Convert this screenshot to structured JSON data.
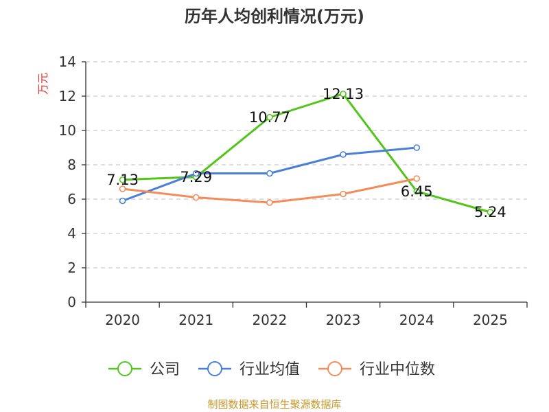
{
  "chart_data": {
    "type": "line",
    "title": "历年人均创利情况(万元)",
    "xlabel": "",
    "ylabel": "万元",
    "categories": [
      "2020",
      "2021",
      "2022",
      "2023",
      "2024",
      "2025"
    ],
    "ylim": [
      0,
      14
    ],
    "yticks": [
      0,
      2,
      4,
      6,
      8,
      10,
      12,
      14
    ],
    "grid": true,
    "legend_position": "bottom",
    "series": [
      {
        "name": "公司",
        "color": "#52c41a",
        "values": [
          7.13,
          7.29,
          10.77,
          12.13,
          6.45,
          5.24
        ],
        "labels": [
          "7.13",
          "7.29",
          "10.77",
          "12.13",
          "6.45",
          "5.24"
        ]
      },
      {
        "name": "行业均值",
        "color": "#4a7fd8",
        "values": [
          5.9,
          7.5,
          7.5,
          8.6,
          9.0,
          null
        ]
      },
      {
        "name": "行业中位数",
        "color": "#f48c5a",
        "values": [
          6.6,
          6.1,
          5.8,
          6.3,
          7.2,
          null
        ]
      }
    ],
    "source": "制图数据来自恒生聚源数据库"
  },
  "colors": {
    "axis": "#333333",
    "grid": "#cccccc",
    "ylabel": "#e03030",
    "source": "#c8962a"
  }
}
